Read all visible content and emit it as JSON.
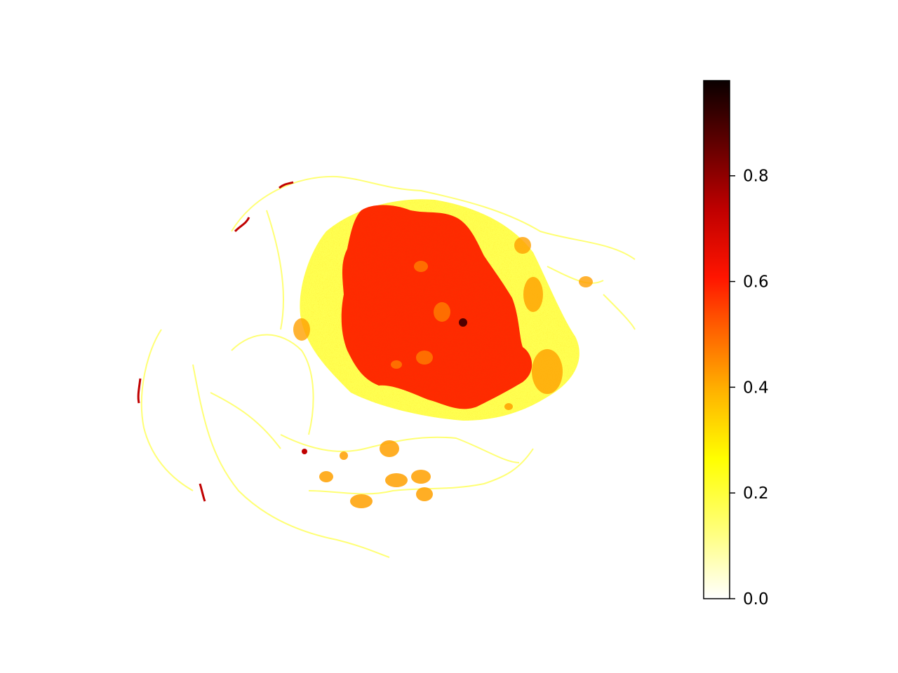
{
  "chart_data": {
    "type": "heatmap",
    "title": "",
    "xlabel": "",
    "ylabel": "",
    "axes_visible": false,
    "colormap": "hot_r",
    "colorbar": {
      "location": "right",
      "vmin": 0.0,
      "vmax": 0.98,
      "ticks": [
        0.0,
        0.2,
        0.4,
        0.6,
        0.8
      ],
      "tick_labels": [
        "0.0",
        "0.2",
        "0.4",
        "0.6",
        "0.8"
      ]
    },
    "regions": [
      {
        "name": "central dense core",
        "approx_value": 0.6
      },
      {
        "name": "surrounding rim",
        "approx_value": 0.25
      },
      {
        "name": "scattered nodules",
        "approx_value": 0.35
      },
      {
        "name": "sparse strands",
        "approx_value": 0.15
      }
    ]
  }
}
